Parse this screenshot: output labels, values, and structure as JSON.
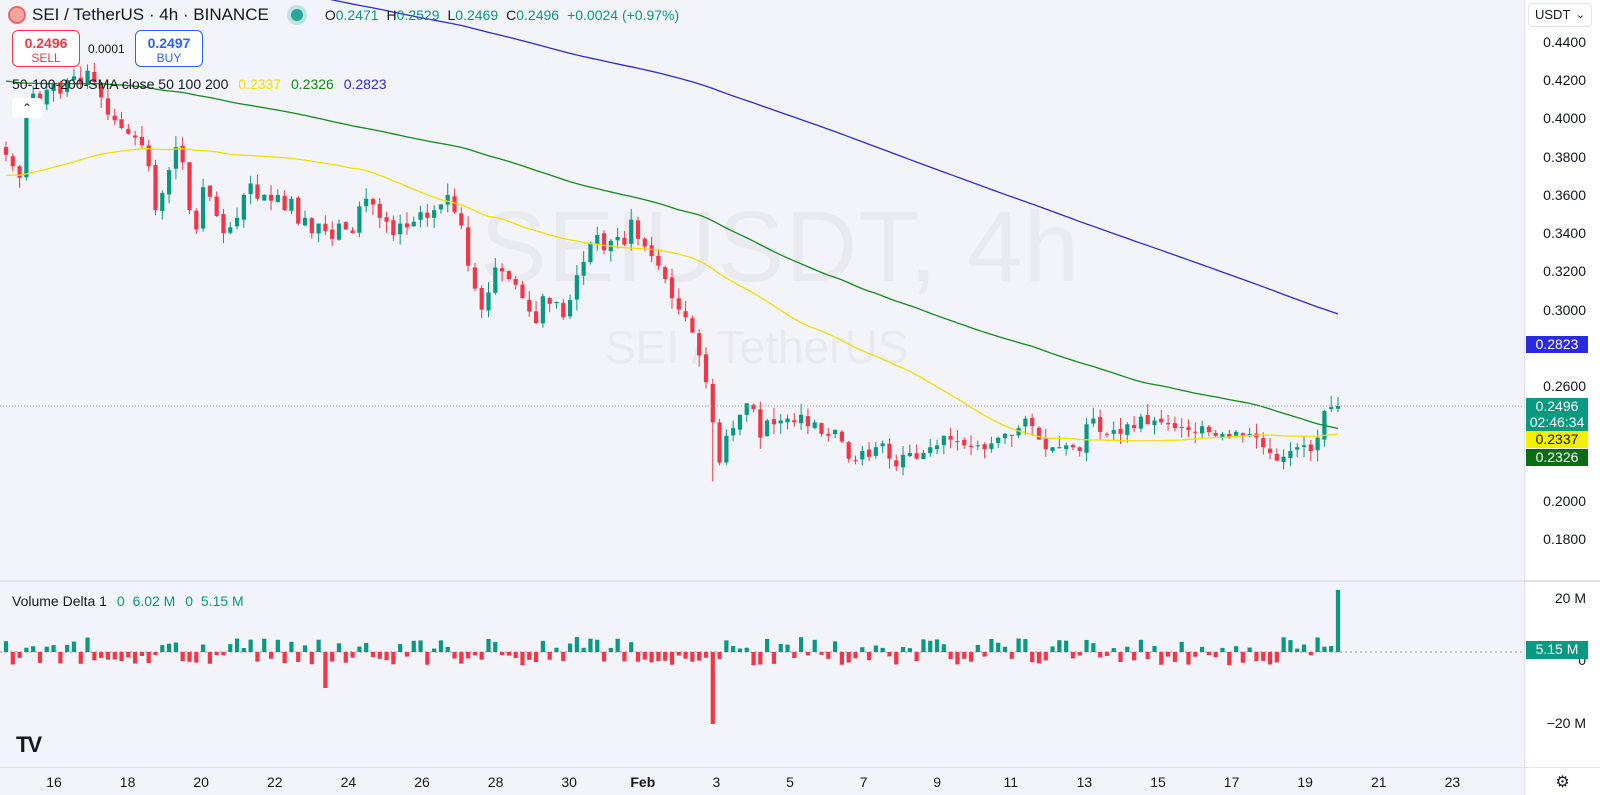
{
  "header": {
    "symbol": "SEI / TetherUS · 4h · BINANCE",
    "open_label": "O",
    "open": "0.2471",
    "high_label": "H",
    "high": "0.2529",
    "low_label": "L",
    "low": "0.2469",
    "close_label": "C",
    "close": "0.2496",
    "change": "+0.0024 (+0.97%)"
  },
  "trade": {
    "sell_price": "0.2496",
    "sell_label": "SELL",
    "buy_price": "0.2497",
    "buy_label": "BUY",
    "spread": "0.0001"
  },
  "sma": {
    "title": "50-100-200-SMA close 50 100 200",
    "v50": "0.2337",
    "v100": "0.2326",
    "v200": "0.2823",
    "c50": "#f2e000",
    "c100": "#138a1a",
    "c200": "#2a2ae0"
  },
  "watermark": {
    "ticker": "SEIUSDT, 4h",
    "name": "SEI / TetherUS"
  },
  "currency": "USDT",
  "price_axis": [
    "0.4400",
    "0.4200",
    "0.4000",
    "0.3800",
    "0.3600",
    "0.3400",
    "0.3200",
    "0.3000",
    "0.2600",
    "0.2000",
    "0.1800"
  ],
  "tags": {
    "sma200": "0.2823",
    "last": "0.2496",
    "countdown": "02:46:34",
    "sma50": "0.2337",
    "sma100": "0.2326"
  },
  "volume": {
    "title": "Volume Delta 1",
    "v1_label": "0",
    "v1": "6.02 M",
    "v2_label": "0",
    "v2": "5.15 M",
    "axis": [
      "20 M",
      "0",
      "−20 M"
    ],
    "tag": "5.15 M"
  },
  "time_axis": [
    {
      "label": "16"
    },
    {
      "label": "18"
    },
    {
      "label": "20"
    },
    {
      "label": "22"
    },
    {
      "label": "24"
    },
    {
      "label": "26"
    },
    {
      "label": "28"
    },
    {
      "label": "30"
    },
    {
      "label": "Feb",
      "bold": true
    },
    {
      "label": "3"
    },
    {
      "label": "5"
    },
    {
      "label": "7"
    },
    {
      "label": "9"
    },
    {
      "label": "11"
    },
    {
      "label": "13"
    },
    {
      "label": "15"
    },
    {
      "label": "17"
    },
    {
      "label": "19"
    },
    {
      "label": "21"
    },
    {
      "label": "23"
    }
  ],
  "colors": {
    "up": "#089981",
    "down": "#f23645",
    "last_price": "#089981"
  },
  "price_path": [
    0.381,
    0.375,
    0.369,
    0.405,
    0.413,
    0.408,
    0.415,
    0.418,
    0.413,
    0.42,
    0.422,
    0.418,
    0.425,
    0.419,
    0.411,
    0.402,
    0.399,
    0.395,
    0.392,
    0.39,
    0.386,
    0.375,
    0.352,
    0.361,
    0.373,
    0.385,
    0.377,
    0.352,
    0.342,
    0.364,
    0.359,
    0.349,
    0.34,
    0.343,
    0.348,
    0.36,
    0.366,
    0.358,
    0.36,
    0.357,
    0.36,
    0.352,
    0.358,
    0.345,
    0.348,
    0.34,
    0.345,
    0.341,
    0.337,
    0.345,
    0.342,
    0.34,
    0.354,
    0.358,
    0.355,
    0.348,
    0.346,
    0.339,
    0.345,
    0.343,
    0.346,
    0.351,
    0.348,
    0.352,
    0.355,
    0.36,
    0.351,
    0.344,
    0.323,
    0.311,
    0.3,
    0.309,
    0.322,
    0.32,
    0.316,
    0.313,
    0.306,
    0.299,
    0.293,
    0.307,
    0.303,
    0.304,
    0.296,
    0.305,
    0.318,
    0.325,
    0.335,
    0.339,
    0.331,
    0.336,
    0.338,
    0.334,
    0.347,
    0.337,
    0.333,
    0.328,
    0.323,
    0.316,
    0.306,
    0.3,
    0.296,
    0.288,
    0.276,
    0.262,
    0.241,
    0.22,
    0.234,
    0.238,
    0.245,
    0.251,
    0.248,
    0.233,
    0.242,
    0.24,
    0.242,
    0.243,
    0.241,
    0.245,
    0.239,
    0.241,
    0.235,
    0.234,
    0.237,
    0.231,
    0.222,
    0.221,
    0.226,
    0.223,
    0.228,
    0.23,
    0.222,
    0.218,
    0.224,
    0.225,
    0.222,
    0.225,
    0.228,
    0.229,
    0.234,
    0.232,
    0.231,
    0.229,
    0.228,
    0.229,
    0.227,
    0.23,
    0.233,
    0.235,
    0.234,
    0.238,
    0.243,
    0.239,
    0.232,
    0.227,
    0.228,
    0.228,
    0.229,
    0.228,
    0.226,
    0.24,
    0.243,
    0.236,
    0.235,
    0.237,
    0.235,
    0.24,
    0.238,
    0.244,
    0.24,
    0.242,
    0.241,
    0.24,
    0.238,
    0.238,
    0.237,
    0.236,
    0.239,
    0.236,
    0.234,
    0.235,
    0.233,
    0.236,
    0.234,
    0.235,
    0.233,
    0.228,
    0.225,
    0.221,
    0.223,
    0.226,
    0.228,
    0.229,
    0.226,
    0.233,
    0.247,
    0.249,
    0.2496
  ]
}
